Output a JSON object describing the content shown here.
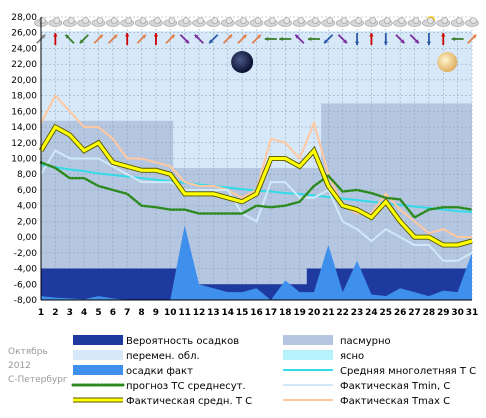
{
  "caption": {
    "month": "Октябрь",
    "year": "2012",
    "city": "С-Петербург"
  },
  "chart_data": {
    "type": "line",
    "x": [
      1,
      2,
      3,
      4,
      5,
      6,
      7,
      8,
      9,
      10,
      11,
      12,
      13,
      14,
      15,
      16,
      17,
      18,
      19,
      20,
      21,
      22,
      23,
      24,
      25,
      26,
      27,
      28,
      29,
      30,
      31
    ],
    "ylim": [
      -8,
      28
    ],
    "yticks": [
      "-8,00",
      "-6,00",
      "-4,00",
      "-2,00",
      "0,00",
      "2,00",
      "4,00",
      "6,00",
      "8,00",
      "10,00",
      "12,00",
      "14,00",
      "16,00",
      "18,00",
      "20,00",
      "22,00",
      "24,00",
      "26,00",
      "28,00"
    ],
    "grid": true,
    "legend": [
      {
        "key": "prob",
        "label": "Вероятность осадков",
        "color": "#1f3a9e",
        "kind": "box"
      },
      {
        "key": "overcast",
        "label": "пасмурно",
        "color": "#b4c6e0",
        "kind": "box"
      },
      {
        "key": "partly",
        "label": "перемен. обл.",
        "color": "#d7e8f8",
        "kind": "box"
      },
      {
        "key": "clear",
        "label": "ясно",
        "color": "#b6f2fb",
        "kind": "box"
      },
      {
        "key": "precip",
        "label": "осадки факт",
        "color": "#3f8fec",
        "kind": "box"
      },
      {
        "key": "climate",
        "label": "Средняя многолетняя Т С",
        "color": "#33dbe8",
        "kind": "line"
      },
      {
        "key": "forecast",
        "label": "прогноз ТС среднесут.",
        "color": "#2d8a1f",
        "kind": "dots"
      },
      {
        "key": "tmin",
        "label": "Фактическая Tmin, C",
        "color": "#cfe9f9",
        "kind": "line"
      },
      {
        "key": "tavg",
        "label": "Фактическая средн. Т С",
        "color": "#ffff00",
        "kind": "thick"
      },
      {
        "key": "tmax",
        "label": "Фактическая Tmax C",
        "color": "#ffc8a0",
        "kind": "line"
      }
    ],
    "series": [
      {
        "name": "Фактическая Tmax C",
        "key": "tmax",
        "color": "#ffc8a0",
        "values": [
          14.5,
          18,
          16,
          14,
          14,
          12.5,
          10,
          10,
          9.5,
          9,
          7,
          6.5,
          6.5,
          6,
          5,
          6,
          12.5,
          12,
          10,
          14.5,
          8,
          4,
          3,
          3,
          5.5,
          3.5,
          2,
          0.5,
          1,
          0,
          0
        ]
      },
      {
        "name": "Фактическая Tmin, C",
        "key": "tmin",
        "color": "#cfe9f9",
        "values": [
          8,
          11,
          10,
          10,
          10,
          9,
          8,
          7,
          7,
          7,
          6,
          6,
          6,
          6,
          3,
          2,
          7,
          7,
          5,
          5,
          6,
          2,
          1,
          -0.5,
          1,
          0,
          -1,
          -1,
          -3,
          -3,
          -2
        ]
      },
      {
        "name": "Фактическая средн. Т С",
        "key": "tavg",
        "color": "#ffff00",
        "values": [
          11,
          14,
          13,
          11,
          12,
          9.5,
          9,
          8.5,
          8.5,
          8,
          5.5,
          5.5,
          5.5,
          5,
          4.5,
          5.5,
          10,
          10,
          9,
          11,
          6.5,
          4,
          3.5,
          2.5,
          4.5,
          2,
          0,
          0,
          -1,
          -1,
          -0.5
        ]
      },
      {
        "name": "Средняя многолетняя Т С",
        "key": "climate",
        "color": "#33dbe8",
        "values": [
          9.2,
          8.9,
          8.6,
          8.4,
          8.1,
          7.9,
          7.7,
          7.5,
          7.3,
          7.1,
          6.9,
          6.7,
          6.5,
          6.3,
          6.1,
          5.9,
          5.8,
          5.6,
          5.5,
          5.3,
          5.1,
          4.9,
          4.7,
          4.5,
          4.3,
          4.1,
          3.9,
          3.7,
          3.5,
          3.3,
          3.2
        ]
      },
      {
        "name": "прогноз ТС среднесут.",
        "key": "forecast",
        "color": "#2d8a1f",
        "values": [
          9.5,
          8.8,
          7.5,
          7.5,
          6.5,
          6,
          5.5,
          4,
          3.8,
          3.5,
          3.5,
          3,
          3,
          3,
          3,
          4,
          3.8,
          4,
          4.5,
          6.5,
          7.8,
          5.8,
          6,
          5.6,
          5,
          4.8,
          2.5,
          3.5,
          3.8,
          3.8,
          3.5
        ]
      },
      {
        "name": "осадки факт",
        "key": "precip",
        "color": "#3f8fec",
        "values": [
          -7.5,
          -7.7,
          -7.8,
          -7.9,
          -7.5,
          -7.8,
          -8,
          -8,
          -8,
          -8,
          1.5,
          -6,
          -6.5,
          -7,
          -7,
          -6.5,
          -8,
          -5.5,
          -7,
          -7,
          -1,
          -7,
          -3,
          -7.3,
          -7.5,
          -6.5,
          -7,
          -7.5,
          -6.8,
          -7,
          -2
        ]
      },
      {
        "name": "Вероятность осадков",
        "key": "prob",
        "color": "#1f3a9e",
        "values": [
          -4,
          -4,
          -4,
          -4,
          -4,
          -4,
          -4,
          -4,
          -4,
          -4,
          -4,
          -6,
          -6,
          -6,
          -6,
          -6,
          -6,
          -6,
          -6,
          -4,
          -4,
          -4,
          -4,
          -4,
          -4,
          -4,
          -4,
          -4,
          -4,
          -4,
          -4
        ]
      }
    ]
  },
  "icons": {
    "wind": [
      {
        "c": "#888888",
        "d": "NE"
      },
      {
        "c": "#cc0000",
        "d": "N"
      },
      {
        "c": "#3a7f2a",
        "d": "NW"
      },
      {
        "c": "#3a7f2a",
        "d": "SW"
      },
      {
        "c": "#e0804b",
        "d": "NE"
      },
      {
        "c": "#e0804b",
        "d": "NE"
      },
      {
        "c": "#cc0000",
        "d": "N"
      },
      {
        "c": "#e0804b",
        "d": "NE"
      },
      {
        "c": "#cc0000",
        "d": "N"
      },
      {
        "c": "#e0804b",
        "d": "NE"
      },
      {
        "c": "#7a2c9e",
        "d": "SE"
      },
      {
        "c": "#7a2c9e",
        "d": "NW"
      },
      {
        "c": "#2a5aa8",
        "d": "SW"
      },
      {
        "c": "#e0804b",
        "d": "NE"
      },
      {
        "c": "#e0804b",
        "d": "NE"
      },
      {
        "c": "#e0804b",
        "d": "NE"
      },
      {
        "c": "#3a7f2a",
        "d": "W"
      },
      {
        "c": "#3a7f2a",
        "d": "W"
      },
      {
        "c": "#7a2c9e",
        "d": "NW"
      },
      {
        "c": "#3a7f2a",
        "d": "W"
      },
      {
        "c": "#2a5aa8",
        "d": "SW"
      },
      {
        "c": "#7a2c9e",
        "d": "SE"
      },
      {
        "c": "#2a5aa8",
        "d": "S"
      },
      {
        "c": "#cc0000",
        "d": "N"
      },
      {
        "c": "#2a5aa8",
        "d": "S"
      },
      {
        "c": "#7a2c9e",
        "d": "SE"
      },
      {
        "c": "#7a2c9e",
        "d": "SE"
      },
      {
        "c": "#2a5aa8",
        "d": "S"
      },
      {
        "c": "#cc0000",
        "d": "N"
      },
      {
        "c": "#3a7f2a",
        "d": "W"
      },
      {
        "c": "#e0804b",
        "d": "NE"
      }
    ],
    "weather": [
      "cloud",
      "cloud",
      "cloud",
      "cloud",
      "cloud",
      "cloud",
      "cloud",
      "cloud",
      "cloud",
      "cloud",
      "cloud",
      "cloud",
      "cloud",
      "cloud",
      "cloud",
      "cloud",
      "cloud",
      "cloud",
      "cloud",
      "cloud",
      "cloud",
      "cloud",
      "cloud",
      "cloud",
      "cloud",
      "cloud",
      "cloud",
      "sun-cloud",
      "cloud",
      "cloud",
      "cloud"
    ],
    "moon_new_day": 15,
    "moon_full_day": 29
  }
}
